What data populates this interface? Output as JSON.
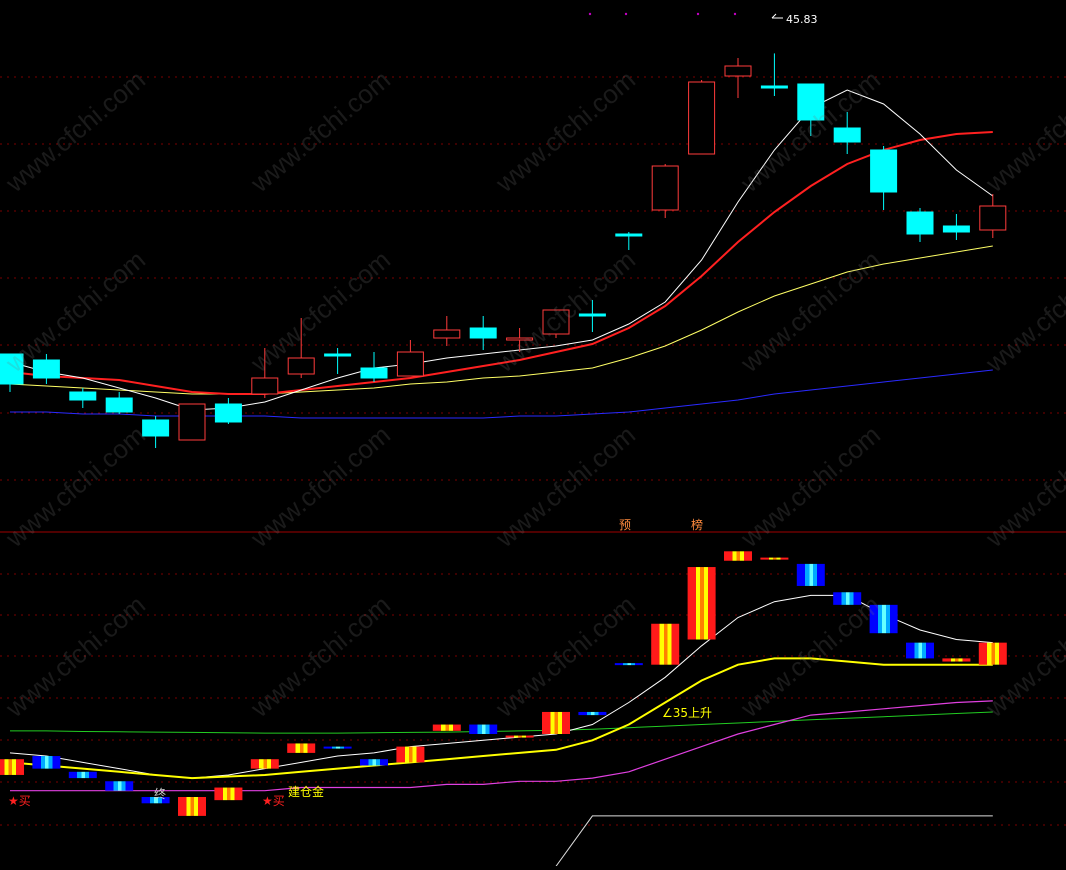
{
  "chart_data": [
    {
      "type": "candlestick",
      "high_label": "45.83",
      "ylim": [
        22.0,
        48.0
      ],
      "grid": true,
      "candles": [
        {
          "o": 30.8,
          "c": 29.3,
          "h": 30.8,
          "l": 28.9
        },
        {
          "o": 30.5,
          "c": 29.6,
          "h": 30.8,
          "l": 29.3
        },
        {
          "o": 28.9,
          "c": 28.5,
          "h": 29.1,
          "l": 28.1
        },
        {
          "o": 28.6,
          "c": 27.9,
          "h": 28.9,
          "l": 27.8
        },
        {
          "o": 27.5,
          "c": 26.7,
          "h": 27.7,
          "l": 26.1
        },
        {
          "o": 26.5,
          "c": 28.3,
          "h": 28.3,
          "l": 26.5
        },
        {
          "o": 28.3,
          "c": 27.4,
          "h": 28.6,
          "l": 27.3
        },
        {
          "o": 28.8,
          "c": 29.6,
          "h": 31.1,
          "l": 28.6
        },
        {
          "o": 29.8,
          "c": 30.6,
          "h": 32.6,
          "l": 29.6
        },
        {
          "o": 30.8,
          "c": 30.7,
          "h": 31.1,
          "l": 29.8
        },
        {
          "o": 30.1,
          "c": 29.6,
          "h": 30.9,
          "l": 29.4
        },
        {
          "o": 29.7,
          "c": 30.9,
          "h": 31.5,
          "l": 29.7
        },
        {
          "o": 31.6,
          "c": 32.0,
          "h": 32.7,
          "l": 31.2
        },
        {
          "o": 32.1,
          "c": 31.6,
          "h": 32.7,
          "l": 31.0
        },
        {
          "o": 31.5,
          "c": 31.6,
          "h": 32.1,
          "l": 30.9
        },
        {
          "o": 31.8,
          "c": 33.0,
          "h": 33.0,
          "l": 31.6
        },
        {
          "o": 32.8,
          "c": 32.7,
          "h": 33.5,
          "l": 31.9
        },
        {
          "o": 36.8,
          "c": 36.7,
          "h": 36.9,
          "l": 36.0
        },
        {
          "o": 38.0,
          "c": 40.2,
          "h": 40.3,
          "l": 37.6
        },
        {
          "o": 40.8,
          "c": 44.4,
          "h": 44.5,
          "l": 40.8
        },
        {
          "o": 44.7,
          "c": 45.2,
          "h": 45.6,
          "l": 43.6
        },
        {
          "o": 44.2,
          "c": 44.1,
          "h": 45.83,
          "l": 43.7
        },
        {
          "o": 44.3,
          "c": 42.5,
          "h": 44.3,
          "l": 41.7
        },
        {
          "o": 42.1,
          "c": 41.4,
          "h": 42.9,
          "l": 40.8
        },
        {
          "o": 41.0,
          "c": 38.9,
          "h": 41.2,
          "l": 38.0
        },
        {
          "o": 37.9,
          "c": 36.8,
          "h": 38.1,
          "l": 36.4
        },
        {
          "o": 37.2,
          "c": 36.9,
          "h": 37.8,
          "l": 36.5
        },
        {
          "o": 37.0,
          "c": 38.2,
          "h": 38.8,
          "l": 36.6
        }
      ],
      "ma_white": [
        30.4,
        29.9,
        29.6,
        29.1,
        28.6,
        28.0,
        28.1,
        28.4,
        29.0,
        29.6,
        30.1,
        30.3,
        30.6,
        30.8,
        31.0,
        31.2,
        31.5,
        32.3,
        33.4,
        35.5,
        38.4,
        41.0,
        43.1,
        44.0,
        43.3,
        41.8,
        40.0,
        38.7
      ],
      "ma_red": [
        29.9,
        29.7,
        29.6,
        29.5,
        29.2,
        28.9,
        28.8,
        28.8,
        29.0,
        29.2,
        29.4,
        29.6,
        29.9,
        30.2,
        30.5,
        30.9,
        31.3,
        32.1,
        33.2,
        34.7,
        36.4,
        37.9,
        39.2,
        40.3,
        41.0,
        41.5,
        41.8,
        41.9
      ],
      "ma_yellow": [
        29.3,
        29.2,
        29.1,
        29.0,
        28.9,
        28.8,
        28.8,
        28.8,
        28.9,
        29.0,
        29.1,
        29.3,
        29.4,
        29.6,
        29.7,
        29.9,
        30.1,
        30.6,
        31.2,
        32.0,
        32.9,
        33.7,
        34.3,
        34.9,
        35.3,
        35.6,
        35.9,
        36.2
      ],
      "ma_blue": [
        27.9,
        27.9,
        27.8,
        27.8,
        27.7,
        27.7,
        27.7,
        27.7,
        27.6,
        27.6,
        27.6,
        27.6,
        27.6,
        27.6,
        27.7,
        27.7,
        27.8,
        27.9,
        28.1,
        28.3,
        28.5,
        28.8,
        29.0,
        29.2,
        29.4,
        29.6,
        29.8,
        30.0
      ],
      "signals": [
        "预",
        "榜"
      ]
    },
    {
      "type": "bar",
      "ylim": [
        0,
        100
      ],
      "bars": [
        {
          "o": 27,
          "c": 32,
          "kind": "up"
        },
        {
          "o": 33,
          "c": 29,
          "kind": "down"
        },
        {
          "o": 28,
          "c": 26,
          "kind": "down"
        },
        {
          "o": 25,
          "c": 22,
          "kind": "down"
        },
        {
          "o": 20,
          "c": 18,
          "kind": "down"
        },
        {
          "o": 14,
          "c": 20,
          "kind": "up"
        },
        {
          "o": 19,
          "c": 23,
          "kind": "up"
        },
        {
          "o": 29,
          "c": 32,
          "kind": "up"
        },
        {
          "o": 34,
          "c": 37,
          "kind": "up"
        },
        {
          "o": 36,
          "c": 35.5,
          "kind": "down"
        },
        {
          "o": 32,
          "c": 30,
          "kind": "down"
        },
        {
          "o": 31,
          "c": 36,
          "kind": "up"
        },
        {
          "o": 41,
          "c": 43,
          "kind": "up"
        },
        {
          "o": 43,
          "c": 40,
          "kind": "down"
        },
        {
          "o": 39,
          "c": 39.5,
          "kind": "up"
        },
        {
          "o": 40,
          "c": 47,
          "kind": "up"
        },
        {
          "o": 47,
          "c": 46,
          "kind": "down"
        },
        {
          "o": 62,
          "c": 62.5,
          "kind": "down"
        },
        {
          "o": 62,
          "c": 75,
          "kind": "up"
        },
        {
          "o": 70,
          "c": 93,
          "kind": "up"
        },
        {
          "o": 95,
          "c": 98,
          "kind": "up"
        },
        {
          "o": 96,
          "c": 95.5,
          "kind": "up"
        },
        {
          "o": 94,
          "c": 87,
          "kind": "down"
        },
        {
          "o": 85,
          "c": 81,
          "kind": "down"
        },
        {
          "o": 81,
          "c": 72,
          "kind": "down"
        },
        {
          "o": 69,
          "c": 64,
          "kind": "down"
        },
        {
          "o": 63,
          "c": 64,
          "kind": "up"
        },
        {
          "o": 62,
          "c": 69,
          "kind": "up"
        }
      ],
      "line_white": [
        34,
        33,
        31,
        29,
        27,
        26,
        27,
        29,
        31,
        33,
        34,
        36,
        37,
        38,
        39,
        40,
        43,
        50,
        58,
        68,
        77,
        82,
        84,
        84,
        78,
        73,
        70,
        69
      ],
      "line_yellow": [
        31,
        30,
        29,
        28,
        27,
        26,
        26.5,
        27,
        28,
        29,
        30,
        31,
        32,
        33,
        34,
        35,
        38,
        43,
        50,
        57,
        62,
        64,
        64,
        63,
        62,
        62,
        62,
        62
      ],
      "line_magenta": [
        22,
        22,
        22,
        22,
        22,
        22,
        22,
        22,
        23,
        23,
        23,
        23,
        24,
        24,
        25,
        25,
        26,
        28,
        32,
        36,
        40,
        43,
        46,
        47,
        48,
        49,
        50,
        50.5
      ],
      "line_green": [
        41,
        41,
        40.8,
        40.7,
        40.6,
        40.5,
        40.4,
        40.3,
        40.3,
        40.3,
        40.4,
        40.5,
        40.6,
        40.8,
        41,
        41.2,
        41.5,
        42,
        42.5,
        43,
        43.5,
        44,
        44.5,
        45,
        45.5,
        46,
        46.5,
        47
      ],
      "line_lowerwhite": [
        null,
        null,
        null,
        null,
        null,
        null,
        null,
        null,
        null,
        null,
        null,
        null,
        null,
        null,
        -10,
        -2,
        14,
        14,
        14,
        14,
        14,
        14,
        14,
        14,
        14,
        14,
        14,
        14
      ],
      "annotations": {
        "a35": "∠35上升",
        "mid_glyph": "终",
        "low_left": "★买",
        "low_mid": "★买",
        "low_mid2": "建仓金"
      }
    }
  ],
  "watermark": "www.cfchi.com",
  "colors": {
    "up_outline": "#ff3b3b",
    "down_fill": "#00ffff",
    "ma_white": "#ffffff",
    "ma_red": "#ff2020",
    "ma_yellow": "#ffff66",
    "ma_blue": "#2a2aff",
    "grid": "#7a0000",
    "sep": "#a00000"
  }
}
